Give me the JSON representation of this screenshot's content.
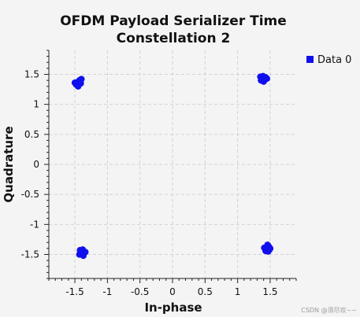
{
  "chart_data": {
    "type": "scatter",
    "title_line1": "OFDM Payload Serializer Time",
    "title_line2": "Constellation 2",
    "xlabel": "In-phase",
    "ylabel": "Quadrature",
    "xlim": [
      -1.9,
      1.9
    ],
    "ylim": [
      -1.9,
      1.9
    ],
    "xticks": [
      -1.5,
      -1,
      -0.5,
      0,
      0.5,
      1,
      1.5
    ],
    "yticks": [
      -1.5,
      -1,
      -0.5,
      0,
      0.5,
      1,
      1.5
    ],
    "xtick_labels": [
      "-1.5",
      "-1",
      "-0.5",
      "0",
      "0.5",
      "1",
      "1.5"
    ],
    "ytick_labels": [
      "-1.5",
      "-1",
      "-0.5",
      "0",
      "0.5",
      "1",
      "1.5"
    ],
    "grid": true,
    "legend_position": "top-right",
    "series": [
      {
        "name": "Data 0",
        "color": "#1010ee",
        "points": [
          {
            "x": -1.46,
            "y": 1.37
          },
          {
            "x": -1.43,
            "y": 1.4
          },
          {
            "x": -1.48,
            "y": 1.33
          },
          {
            "x": -1.41,
            "y": 1.35
          },
          {
            "x": -1.45,
            "y": 1.3
          },
          {
            "x": -1.4,
            "y": 1.42
          },
          {
            "x": -1.5,
            "y": 1.36
          },
          {
            "x": -1.44,
            "y": 1.34
          },
          {
            "x": 1.38,
            "y": 1.44
          },
          {
            "x": 1.42,
            "y": 1.41
          },
          {
            "x": 1.35,
            "y": 1.46
          },
          {
            "x": 1.4,
            "y": 1.38
          },
          {
            "x": 1.45,
            "y": 1.43
          },
          {
            "x": 1.36,
            "y": 1.4
          },
          {
            "x": 1.39,
            "y": 1.47
          },
          {
            "x": 1.43,
            "y": 1.45
          },
          {
            "x": -1.4,
            "y": -1.45
          },
          {
            "x": -1.36,
            "y": -1.48
          },
          {
            "x": -1.43,
            "y": -1.5
          },
          {
            "x": -1.38,
            "y": -1.42
          },
          {
            "x": -1.34,
            "y": -1.46
          },
          {
            "x": -1.41,
            "y": -1.47
          },
          {
            "x": -1.37,
            "y": -1.52
          },
          {
            "x": -1.42,
            "y": -1.43
          },
          {
            "x": 1.45,
            "y": -1.41
          },
          {
            "x": 1.48,
            "y": -1.37
          },
          {
            "x": 1.43,
            "y": -1.44
          },
          {
            "x": 1.5,
            "y": -1.4
          },
          {
            "x": 1.46,
            "y": -1.34
          },
          {
            "x": 1.41,
            "y": -1.39
          },
          {
            "x": 1.47,
            "y": -1.45
          },
          {
            "x": 1.49,
            "y": -1.42
          }
        ]
      }
    ]
  },
  "watermark": "CSDN @须尽欢~~"
}
